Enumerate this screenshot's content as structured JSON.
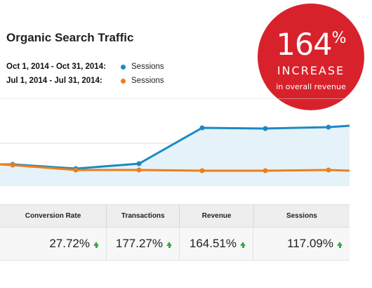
{
  "title": "Organic Search Traffic",
  "legend": [
    {
      "range": "Oct 1, 2014 - Oct 31, 2014:",
      "series": "Sessions",
      "color": "#1b8ac4"
    },
    {
      "range": "Jul 1, 2014 - Jul 31, 2014:",
      "series": "Sessions",
      "color": "#ed7d1b"
    }
  ],
  "badge": {
    "number": "164",
    "symbol": "%",
    "headline": "INCREASE",
    "caption": "in overall revenue",
    "color": "#d8222b"
  },
  "table": {
    "headers": [
      "Conversion Rate",
      "Transactions",
      "Revenue",
      "Sessions"
    ],
    "values": [
      "27.72%",
      "177.27%",
      "164.51%",
      "117.09%"
    ],
    "trend_icon": "up-arrow-icon"
  },
  "chart_data": {
    "type": "area",
    "series": [
      {
        "name": "Sessions",
        "color": "#1b8ac4",
        "values": [
          94,
          94,
          100,
          93,
          42,
          43,
          41,
          39
        ]
      },
      {
        "name": "Sessions",
        "color": "#ed7d1b",
        "values": [
          94,
          95,
          102,
          102,
          103,
          103,
          102,
          103
        ]
      }
    ],
    "grid": true
  }
}
